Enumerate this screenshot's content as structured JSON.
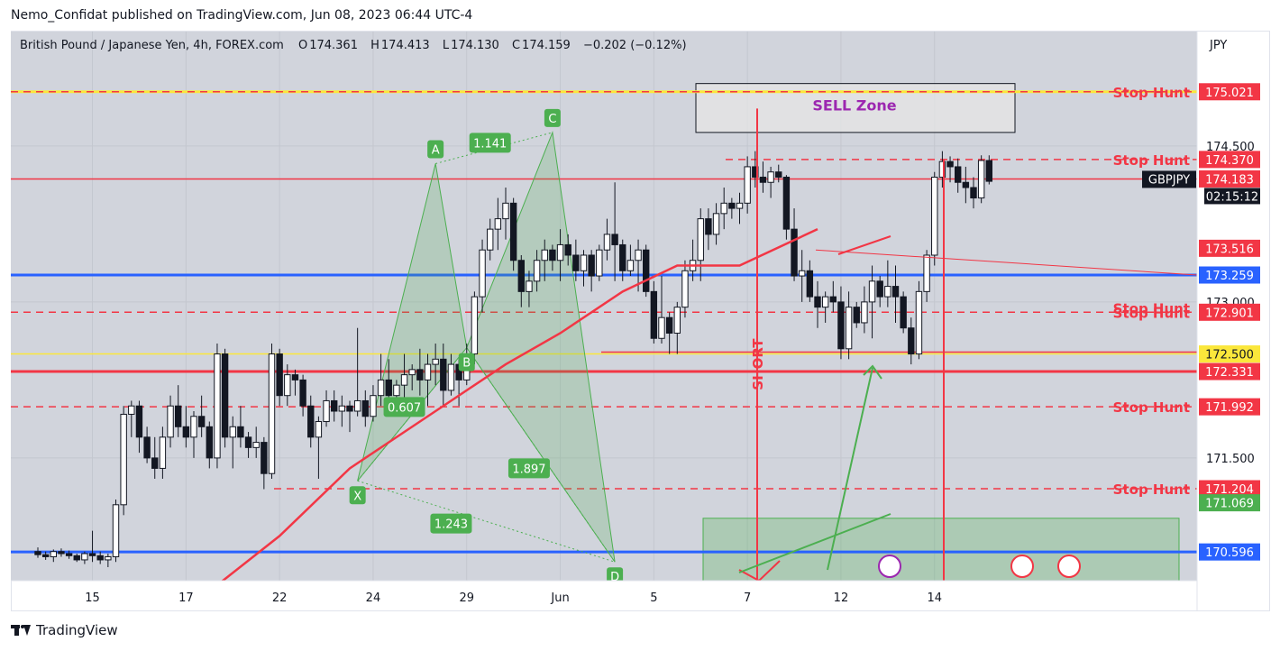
{
  "header": {
    "published": "Nemo_Confidat published on TradingView.com, Jun 08, 2023 06:44 UTC-4"
  },
  "symbol_info": {
    "name": "British Pound / Japanese Yen, 4h, FOREX.com",
    "open_label": "O",
    "open": "174.361",
    "high_label": "H",
    "high": "174.413",
    "low_label": "L",
    "low": "174.130",
    "close_label": "C",
    "close": "174.159",
    "change": "−0.202 (−0.12%)"
  },
  "footer": {
    "brand": "TradingView"
  },
  "colors": {
    "up": "#ffffff",
    "down": "#131722",
    "ma": "#f23645",
    "red_level": "#f23645",
    "blue_level": "#2962ff",
    "pattern": "#4caf50",
    "pattern_fill": "rgba(76,175,80,0.22)",
    "sell_label": "#9c27b0",
    "yellow_level": "#fbe73b"
  },
  "chart_data": {
    "type": "candlestick",
    "currency": "JPY",
    "ticker": "GBPJPY",
    "countdown": "02:15:12",
    "ylim": [
      170.32,
      175.6
    ],
    "y_ticks": [
      "174.500",
      "173.000",
      "171.500"
    ],
    "x_ticks": [
      {
        "label": "15",
        "bar": 7
      },
      {
        "label": "17",
        "bar": 19
      },
      {
        "label": "22",
        "bar": 31
      },
      {
        "label": "24",
        "bar": 43
      },
      {
        "label": "29",
        "bar": 55
      },
      {
        "label": "Jun",
        "bar": 67
      },
      {
        "label": "5",
        "bar": 79
      },
      {
        "label": "7",
        "bar": 91
      },
      {
        "label": "12",
        "bar": 103
      },
      {
        "label": "14",
        "bar": 115
      }
    ],
    "candles": [
      [
        170.6,
        170.64,
        170.54,
        170.57
      ],
      [
        170.57,
        170.6,
        170.52,
        170.55
      ],
      [
        170.55,
        170.62,
        170.5,
        170.6
      ],
      [
        170.6,
        170.63,
        170.55,
        170.58
      ],
      [
        170.58,
        170.61,
        170.53,
        170.56
      ],
      [
        170.56,
        170.58,
        170.5,
        170.52
      ],
      [
        170.52,
        170.6,
        170.48,
        170.58
      ],
      [
        170.58,
        170.8,
        170.5,
        170.56
      ],
      [
        170.56,
        170.6,
        170.48,
        170.52
      ],
      [
        170.52,
        170.58,
        170.45,
        170.55
      ],
      [
        170.55,
        171.1,
        170.5,
        171.05
      ],
      [
        171.05,
        172.0,
        170.95,
        171.92
      ],
      [
        171.92,
        172.05,
        171.7,
        172.0
      ],
      [
        172.0,
        172.05,
        171.55,
        171.7
      ],
      [
        171.7,
        171.8,
        171.45,
        171.5
      ],
      [
        171.5,
        171.7,
        171.3,
        171.4
      ],
      [
        171.4,
        171.8,
        171.3,
        171.7
      ],
      [
        171.7,
        172.1,
        171.6,
        172.0
      ],
      [
        172.0,
        172.2,
        171.7,
        171.8
      ],
      [
        171.8,
        172.0,
        171.6,
        171.7
      ],
      [
        171.7,
        171.95,
        171.5,
        171.9
      ],
      [
        171.9,
        172.1,
        171.7,
        171.8
      ],
      [
        171.8,
        171.85,
        171.4,
        171.5
      ],
      [
        171.5,
        172.6,
        171.4,
        172.5
      ],
      [
        172.5,
        172.55,
        171.6,
        171.7
      ],
      [
        171.7,
        171.9,
        171.4,
        171.8
      ],
      [
        171.8,
        172.0,
        171.6,
        171.7
      ],
      [
        171.7,
        171.75,
        171.5,
        171.6
      ],
      [
        171.6,
        171.8,
        171.5,
        171.65
      ],
      [
        171.65,
        171.7,
        171.2,
        171.35
      ],
      [
        171.35,
        172.6,
        171.3,
        172.5
      ],
      [
        172.5,
        172.55,
        172.0,
        172.1
      ],
      [
        172.1,
        172.4,
        172.0,
        172.3
      ],
      [
        172.3,
        172.35,
        172.1,
        172.25
      ],
      [
        172.25,
        172.3,
        171.9,
        172.0
      ],
      [
        172.0,
        172.1,
        171.6,
        171.7
      ],
      [
        171.7,
        171.9,
        171.3,
        171.85
      ],
      [
        171.85,
        172.15,
        171.8,
        172.05
      ],
      [
        172.05,
        172.15,
        171.85,
        171.95
      ],
      [
        171.95,
        172.1,
        171.8,
        172.0
      ],
      [
        172.0,
        172.05,
        171.75,
        171.95
      ],
      [
        171.95,
        172.75,
        171.9,
        172.05
      ],
      [
        172.05,
        172.15,
        171.8,
        171.9
      ],
      [
        171.9,
        172.2,
        171.85,
        172.1
      ],
      [
        172.1,
        172.5,
        172.0,
        172.25
      ],
      [
        172.25,
        172.45,
        172.05,
        172.1
      ],
      [
        172.1,
        172.25,
        171.95,
        172.2
      ],
      [
        172.2,
        172.5,
        172.05,
        172.3
      ],
      [
        172.3,
        172.4,
        172.15,
        172.35
      ],
      [
        172.35,
        172.55,
        172.1,
        172.25
      ],
      [
        172.25,
        172.5,
        172.0,
        172.4
      ],
      [
        172.4,
        172.6,
        172.2,
        172.45
      ],
      [
        172.45,
        172.6,
        172.0,
        172.15
      ],
      [
        172.15,
        172.5,
        172.1,
        172.4
      ],
      [
        172.4,
        172.45,
        172.0,
        172.25
      ],
      [
        172.25,
        172.6,
        172.2,
        172.5
      ],
      [
        172.5,
        173.1,
        172.4,
        173.05
      ],
      [
        173.05,
        173.6,
        172.9,
        173.5
      ],
      [
        173.5,
        173.8,
        173.4,
        173.7
      ],
      [
        173.7,
        174.0,
        173.5,
        173.8
      ],
      [
        173.8,
        174.1,
        173.6,
        173.95
      ],
      [
        173.95,
        174.0,
        173.3,
        173.4
      ],
      [
        173.4,
        173.45,
        172.95,
        173.1
      ],
      [
        173.1,
        173.3,
        172.95,
        173.2
      ],
      [
        173.2,
        173.5,
        173.1,
        173.4
      ],
      [
        173.4,
        173.6,
        173.2,
        173.5
      ],
      [
        173.5,
        173.55,
        173.3,
        173.4
      ],
      [
        173.4,
        173.7,
        173.2,
        173.55
      ],
      [
        173.55,
        173.65,
        173.35,
        173.45
      ],
      [
        173.45,
        173.6,
        173.2,
        173.3
      ],
      [
        173.3,
        173.5,
        173.15,
        173.45
      ],
      [
        173.45,
        173.5,
        173.1,
        173.25
      ],
      [
        173.25,
        173.55,
        173.2,
        173.5
      ],
      [
        173.5,
        173.8,
        173.4,
        173.65
      ],
      [
        173.65,
        174.15,
        173.2,
        173.55
      ],
      [
        173.55,
        173.6,
        173.2,
        173.3
      ],
      [
        173.3,
        173.55,
        173.25,
        173.4
      ],
      [
        173.4,
        173.6,
        173.1,
        173.5
      ],
      [
        173.5,
        173.55,
        173.05,
        173.1
      ],
      [
        173.1,
        173.2,
        172.6,
        172.65
      ],
      [
        172.65,
        173.25,
        172.6,
        172.85
      ],
      [
        172.85,
        172.9,
        172.5,
        172.7
      ],
      [
        172.7,
        173.0,
        172.5,
        172.95
      ],
      [
        172.95,
        173.4,
        172.85,
        173.3
      ],
      [
        173.3,
        173.6,
        173.2,
        173.4
      ],
      [
        173.4,
        173.9,
        173.2,
        173.8
      ],
      [
        173.8,
        173.9,
        173.5,
        173.65
      ],
      [
        173.65,
        173.95,
        173.55,
        173.85
      ],
      [
        173.85,
        174.1,
        173.7,
        173.95
      ],
      [
        173.95,
        174.0,
        173.8,
        173.9
      ],
      [
        173.9,
        174.05,
        173.75,
        173.95
      ],
      [
        173.95,
        174.4,
        173.85,
        174.3
      ],
      [
        174.3,
        174.45,
        174.1,
        174.2
      ],
      [
        174.2,
        174.35,
        174.05,
        174.15
      ],
      [
        174.15,
        174.3,
        174.0,
        174.25
      ],
      [
        174.25,
        174.32,
        174.15,
        174.2
      ],
      [
        174.2,
        174.22,
        173.6,
        173.7
      ],
      [
        173.7,
        173.9,
        173.2,
        173.25
      ],
      [
        173.25,
        173.5,
        173.0,
        173.3
      ],
      [
        173.3,
        173.4,
        173.0,
        173.05
      ],
      [
        173.05,
        173.2,
        172.75,
        172.95
      ],
      [
        172.95,
        173.1,
        172.8,
        173.05
      ],
      [
        173.05,
        173.2,
        172.9,
        173.0
      ],
      [
        173.0,
        173.15,
        172.45,
        172.55
      ],
      [
        172.55,
        173.1,
        172.45,
        172.95
      ],
      [
        172.95,
        173.0,
        172.75,
        172.8
      ],
      [
        172.8,
        173.15,
        172.7,
        173.0
      ],
      [
        173.0,
        173.35,
        172.65,
        173.2
      ],
      [
        173.2,
        173.25,
        172.95,
        173.05
      ],
      [
        173.05,
        173.4,
        172.95,
        173.15
      ],
      [
        173.15,
        173.35,
        172.8,
        173.05
      ],
      [
        173.05,
        173.1,
        172.7,
        172.75
      ],
      [
        172.75,
        172.85,
        172.4,
        172.5
      ],
      [
        172.5,
        173.2,
        172.45,
        173.1
      ],
      [
        173.1,
        173.5,
        173.0,
        173.45
      ],
      [
        173.45,
        174.25,
        173.35,
        174.2
      ],
      [
        174.2,
        174.45,
        174.1,
        174.35
      ],
      [
        174.35,
        174.4,
        174.15,
        174.3
      ],
      [
        174.3,
        174.38,
        174.05,
        174.15
      ],
      [
        174.15,
        174.3,
        173.95,
        174.1
      ],
      [
        174.1,
        174.2,
        173.9,
        174.0
      ],
      [
        174.0,
        174.41,
        173.95,
        174.36
      ],
      [
        174.36,
        174.41,
        174.13,
        174.16
      ]
    ],
    "moving_average": {
      "name": "MA",
      "points": [
        [
          20,
          170.1
        ],
        [
          31,
          170.75
        ],
        [
          40,
          171.4
        ],
        [
          50,
          171.9
        ],
        [
          60,
          172.4
        ],
        [
          67,
          172.7
        ],
        [
          75,
          173.1
        ],
        [
          82,
          173.35
        ],
        [
          90,
          173.35
        ],
        [
          100,
          173.7
        ]
      ]
    },
    "pattern": {
      "points": [
        {
          "label": "X",
          "price": 171.28,
          "bar": 41
        },
        {
          "label": "A",
          "price": 174.33,
          "bar": 51
        },
        {
          "label": "B",
          "price": 172.56,
          "bar": 55
        },
        {
          "label": "C",
          "price": 174.63,
          "bar": 66
        },
        {
          "label": "D",
          "price": 170.5,
          "bar": 74
        }
      ],
      "ratios": [
        {
          "label": "1.141",
          "bar": 58,
          "price": 174.53
        },
        {
          "label": "0.607",
          "bar": 47,
          "price": 171.99
        },
        {
          "label": "1.897",
          "bar": 63,
          "price": 171.4
        },
        {
          "label": "1.243",
          "bar": 53,
          "price": 170.87
        }
      ]
    },
    "levels": [
      {
        "price": 175.021,
        "label": "Stop Hunt",
        "tag": "175.021",
        "style": "dashed",
        "color": "#f23645",
        "tag_bg": "#f23645",
        "tag_fg": "#ffffff",
        "yellow": true
      },
      {
        "price": 174.37,
        "label": "Stop Hunt",
        "tag": "174.370",
        "style": "dashed",
        "color": "#f23645",
        "tag_bg": "#f23645",
        "tag_fg": "#ffffff"
      },
      {
        "price": 174.183,
        "label": "",
        "tag": "174.183",
        "style": "solid",
        "color": "#f23645",
        "tag_bg": "#f23645",
        "tag_fg": "#ffffff"
      },
      {
        "price": 173.516,
        "label": "",
        "tag": "173.516",
        "style": "none",
        "color": "#f23645",
        "tag_bg": "#f23645",
        "tag_fg": "#ffffff"
      },
      {
        "price": 173.259,
        "label": "",
        "tag": "173.259",
        "style": "solid",
        "color": "#2962ff",
        "tag_bg": "#2962ff",
        "tag_fg": "#ffffff"
      },
      {
        "price": 172.901,
        "label": "Stop Hunt",
        "tag": "172.901",
        "style": "dashed",
        "color": "#f23645",
        "tag_bg": "#f23645",
        "tag_fg": "#ffffff"
      },
      {
        "price": 172.5,
        "label": "",
        "tag": "172.500",
        "style": "yellow",
        "color": "#fbe73b",
        "tag_bg": "#fbe73b",
        "tag_fg": "#131722"
      },
      {
        "price": 172.331,
        "label": "",
        "tag": "172.331",
        "style": "thick",
        "color": "#f23645",
        "tag_bg": "#f23645",
        "tag_fg": "#ffffff"
      },
      {
        "price": 171.992,
        "label": "Stop Hunt",
        "tag": "171.992",
        "style": "dashed",
        "color": "#f23645",
        "tag_bg": "#f23645",
        "tag_fg": "#ffffff"
      },
      {
        "price": 171.204,
        "label": "Stop Hunt",
        "tag": "171.204",
        "style": "dashed",
        "color": "#f23645",
        "tag_bg": "#f23645",
        "tag_fg": "#ffffff"
      },
      {
        "price": 171.069,
        "label": "",
        "tag": "171.069",
        "style": "none",
        "color": "#4caf50",
        "tag_bg": "#4caf50",
        "tag_fg": "#ffffff"
      },
      {
        "price": 170.596,
        "label": "",
        "tag": "170.596",
        "style": "solid",
        "color": "#2962ff",
        "tag_bg": "#2962ff",
        "tag_fg": "#ffffff"
      }
    ],
    "second_stop_hunt_label": "Stop Hunt",
    "sell_zone": {
      "label": "SELL Zone",
      "price_top": 175.1,
      "price_bottom": 174.63
    },
    "short_label": "SHORT"
  }
}
